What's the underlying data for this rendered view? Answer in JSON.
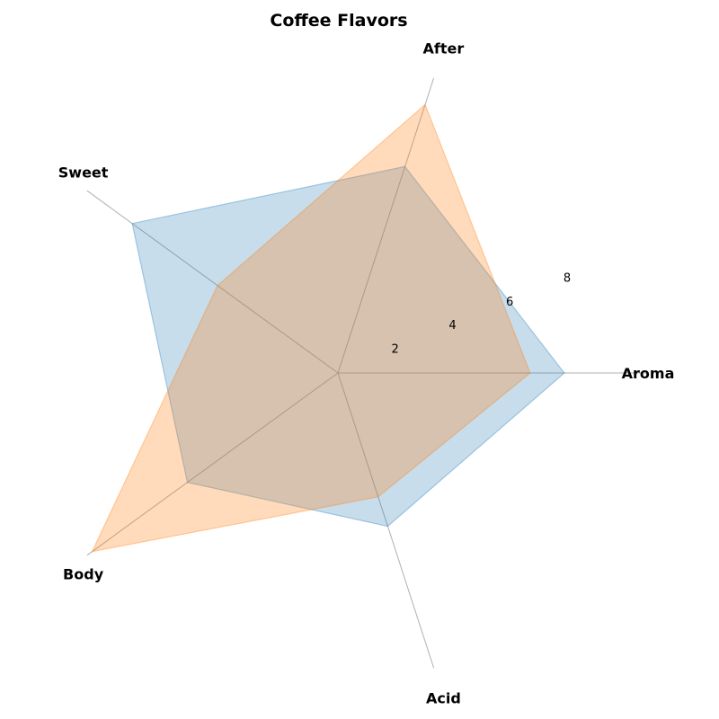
{
  "chart_data": {
    "type": "radar",
    "title": "Coffee Flavors",
    "categories": [
      "Aroma",
      "Acid",
      "Body",
      "Sweet",
      "After"
    ],
    "rlim": [
      0,
      10
    ],
    "rticks": [
      2,
      4,
      6,
      8
    ],
    "rtick_labels": [
      "2",
      "4",
      "6",
      "8"
    ],
    "grid": false,
    "series": [
      {
        "color": "#1f77b4",
        "opacity": 0.25,
        "values": [
          7.3,
          5.2,
          6.0,
          8.2,
          7.0
        ]
      },
      {
        "color": "#ff7f0e",
        "opacity": 0.28,
        "values": [
          6.2,
          4.2,
          9.8,
          4.8,
          9.1
        ]
      }
    ]
  }
}
